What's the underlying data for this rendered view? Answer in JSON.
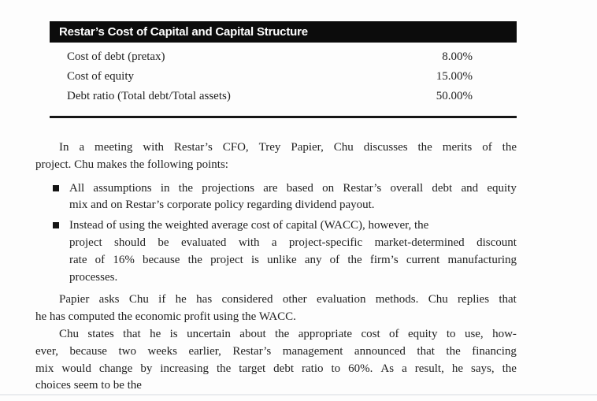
{
  "exhibit_table": {
    "title": "Restar’s Cost of Capital and Capital Structure",
    "rows": [
      {
        "label": "Cost of debt (pretax)",
        "value": "8.00%"
      },
      {
        "label": "Cost of equity",
        "value": "15.00%"
      },
      {
        "label": "Debt ratio (Total debt/Total assets)",
        "value": "50.00%"
      }
    ]
  },
  "body": {
    "paragraphs": [
      {
        "type": "indent",
        "lines": [
          {
            "text": "In a meeting with Restar’s CFO, Trey Papier, Chu discusses the merits of the",
            "fill": true
          },
          {
            "text": "project. Chu makes the following points:",
            "fill": false
          }
        ]
      },
      {
        "type": "bullet",
        "lines": [
          {
            "text": "All assumptions in the projections are based on Restar’s overall debt and equity",
            "fill": true
          },
          {
            "text": "mix and on Restar’s corporate policy regarding dividend payout.",
            "fill": false
          }
        ]
      },
      {
        "type": "bullet",
        "lines": [
          {
            "text": "Instead of using the weighted average cost of capital (WACC), however, the",
            "fill": false
          },
          {
            "text": "project should be evaluated with a project-specific market-determined discount",
            "fill": true
          },
          {
            "text": "rate of 16% because the project is unlike any of the firm’s current manufacturing",
            "fill": true
          },
          {
            "text": "processes.",
            "fill": false
          }
        ]
      },
      {
        "type": "indent",
        "lines": [
          {
            "text": "Papier asks Chu if he has considered other evaluation methods. Chu replies that",
            "fill": true
          },
          {
            "text": "he has computed the economic profit using the WACC.",
            "fill": false
          }
        ]
      },
      {
        "type": "indent",
        "lines": [
          {
            "text": "Chu states that he is uncertain about the appropriate cost of equity to use, how-",
            "fill": true
          },
          {
            "text": "ever, because two weeks earlier, Restar’s management announced that the financing",
            "fill": true
          },
          {
            "text": "mix would change by increasing the target debt ratio to 60%. As a result, he says, the",
            "fill": true
          },
          {
            "text": "choices seem to be the",
            "fill": false
          }
        ]
      }
    ]
  },
  "colors": {
    "page_background": "#fdfdfd",
    "header_bar": "#0c0c0c",
    "header_text": "#ffffff",
    "body_text": "#1f1f1f",
    "rule": "#161616"
  }
}
